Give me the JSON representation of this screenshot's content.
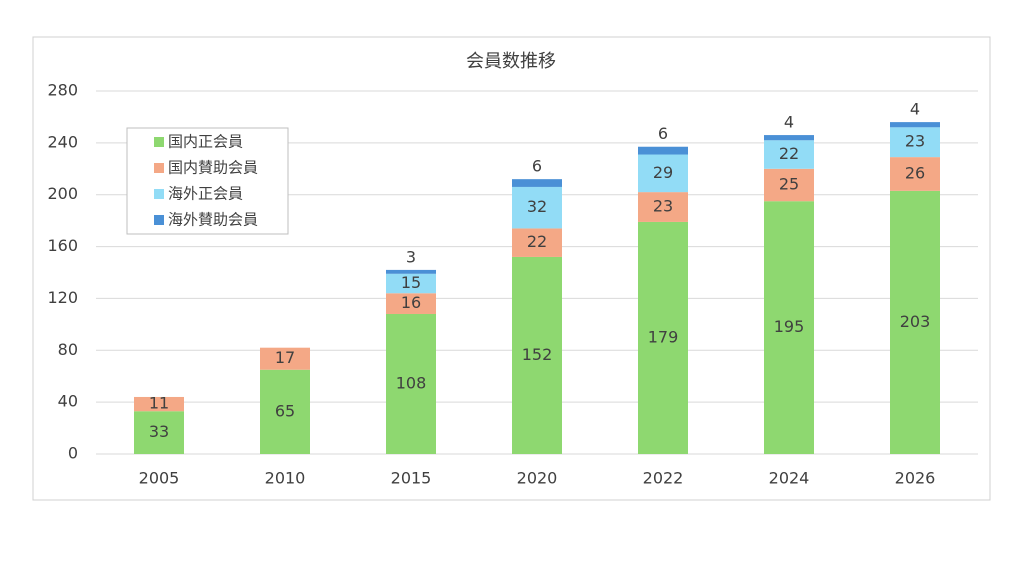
{
  "chart_data": {
    "type": "stacked-bar",
    "title": "会員数推移",
    "categories": [
      "2005",
      "2010",
      "2015",
      "2020",
      "2022",
      "2024",
      "2026"
    ],
    "series": [
      {
        "name": "国内正会員",
        "color": "#8ed870",
        "values": [
          33,
          65,
          108,
          152,
          179,
          195,
          203
        ]
      },
      {
        "name": "国内賛助会員",
        "color": "#f4a886",
        "values": [
          11,
          17,
          16,
          22,
          23,
          25,
          26
        ]
      },
      {
        "name": "海外正会員",
        "color": "#92dcf6",
        "values": [
          null,
          null,
          15,
          32,
          29,
          22,
          23
        ]
      },
      {
        "name": "海外賛助会員",
        "color": "#4a90d6",
        "values": [
          null,
          null,
          3,
          6,
          6,
          4,
          4
        ]
      }
    ],
    "ylim": [
      0,
      280
    ],
    "yticks": [
      0,
      40,
      80,
      120,
      160,
      200,
      240,
      280
    ],
    "grid": true
  }
}
